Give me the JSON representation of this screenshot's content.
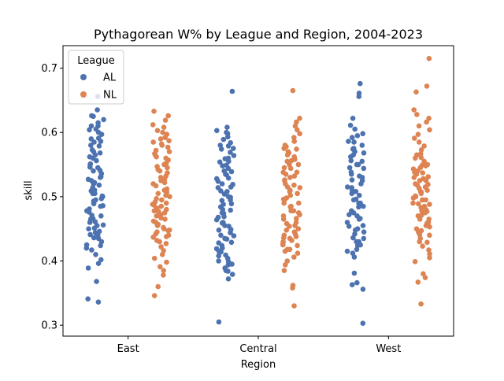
{
  "chart_data": {
    "type": "scatter",
    "subtype": "stripplot",
    "title": "Pythagorean W% by League and Region, 2004-2023",
    "xlabel": "Region",
    "ylabel": "skill",
    "categories": [
      "East",
      "Central",
      "West"
    ],
    "ylim": [
      0.283,
      0.735
    ],
    "yticks": [
      0.3,
      0.4,
      0.5,
      0.6,
      0.7
    ],
    "ytick_labels": [
      "0.3",
      "0.4",
      "0.5",
      "0.6",
      "0.7"
    ],
    "grid": false,
    "legend": {
      "title": "League",
      "position": "top-left"
    },
    "series": [
      {
        "name": "AL",
        "color": "#4c72b0",
        "values": [
          [
            0.656,
            0.626,
            0.635,
            0.62,
            0.615,
            0.61,
            0.604,
            0.597,
            0.591,
            0.586,
            0.579,
            0.573,
            0.568,
            0.562,
            0.556,
            0.551,
            0.546,
            0.541,
            0.536,
            0.531,
            0.527,
            0.522,
            0.518,
            0.514,
            0.509,
            0.505,
            0.501,
            0.497,
            0.493,
            0.489,
            0.485,
            0.481,
            0.476,
            0.471,
            0.466,
            0.461,
            0.456,
            0.451,
            0.446,
            0.441,
            0.436,
            0.43,
            0.424,
            0.417,
            0.41,
            0.402,
            0.396,
            0.389,
            0.368,
            0.341,
            0.336,
            0.625,
            0.6,
            0.58,
            0.56,
            0.54,
            0.52,
            0.5,
            0.49,
            0.478,
            0.465,
            0.45,
            0.44,
            0.42,
            0.61,
            0.59,
            0.57,
            0.55,
            0.53,
            0.51,
            0.495,
            0.47,
            0.455,
            0.435,
            0.425,
            0.605,
            0.585,
            0.565,
            0.545,
            0.525,
            0.505,
            0.486,
            0.46,
            0.444
          ],
          [
            0.664,
            0.608,
            0.603,
            0.598,
            0.593,
            0.589,
            0.584,
            0.579,
            0.574,
            0.569,
            0.564,
            0.559,
            0.554,
            0.549,
            0.544,
            0.539,
            0.534,
            0.529,
            0.524,
            0.519,
            0.514,
            0.509,
            0.504,
            0.499,
            0.494,
            0.489,
            0.484,
            0.479,
            0.474,
            0.469,
            0.464,
            0.459,
            0.454,
            0.449,
            0.444,
            0.439,
            0.434,
            0.429,
            0.424,
            0.419,
            0.414,
            0.409,
            0.404,
            0.399,
            0.394,
            0.389,
            0.384,
            0.379,
            0.372,
            0.305,
            0.6,
            0.58,
            0.56,
            0.54,
            0.52,
            0.5,
            0.48,
            0.46,
            0.44,
            0.42,
            0.4,
            0.385,
            0.575,
            0.555,
            0.535,
            0.515,
            0.495,
            0.475,
            0.455,
            0.435,
            0.415,
            0.395,
            0.548,
            0.528,
            0.508,
            0.488,
            0.468,
            0.448,
            0.428,
            0.408
          ],
          [
            0.676,
            0.661,
            0.656,
            0.622,
            0.611,
            0.605,
            0.598,
            0.592,
            0.586,
            0.58,
            0.574,
            0.568,
            0.562,
            0.556,
            0.55,
            0.544,
            0.538,
            0.532,
            0.526,
            0.52,
            0.514,
            0.508,
            0.502,
            0.496,
            0.49,
            0.484,
            0.478,
            0.472,
            0.466,
            0.46,
            0.454,
            0.448,
            0.442,
            0.436,
            0.43,
            0.424,
            0.418,
            0.412,
            0.406,
            0.381,
            0.366,
            0.363,
            0.356,
            0.303,
            0.595,
            0.575,
            0.555,
            0.535,
            0.515,
            0.495,
            0.475,
            0.455,
            0.435,
            0.415,
            0.585,
            0.565,
            0.545,
            0.525,
            0.505,
            0.485,
            0.465,
            0.445,
            0.425,
            0.57,
            0.55,
            0.53,
            0.51,
            0.49,
            0.47,
            0.45,
            0.43
          ]
        ]
      },
      {
        "name": "NL",
        "color": "#dd8452",
        "values": [
          [
            0.633,
            0.626,
            0.619,
            0.612,
            0.608,
            0.603,
            0.597,
            0.592,
            0.587,
            0.582,
            0.577,
            0.572,
            0.567,
            0.562,
            0.557,
            0.552,
            0.547,
            0.542,
            0.537,
            0.532,
            0.527,
            0.522,
            0.517,
            0.512,
            0.507,
            0.502,
            0.497,
            0.492,
            0.487,
            0.482,
            0.477,
            0.472,
            0.467,
            0.462,
            0.457,
            0.452,
            0.447,
            0.442,
            0.437,
            0.432,
            0.427,
            0.422,
            0.416,
            0.41,
            0.404,
            0.398,
            0.391,
            0.385,
            0.378,
            0.36,
            0.346,
            0.6,
            0.58,
            0.56,
            0.54,
            0.52,
            0.5,
            0.49,
            0.48,
            0.47,
            0.46,
            0.45,
            0.44,
            0.43,
            0.59,
            0.57,
            0.55,
            0.53,
            0.51,
            0.495,
            0.485,
            0.475,
            0.465,
            0.455,
            0.445,
            0.585,
            0.565,
            0.545,
            0.525,
            0.505,
            0.488,
            0.478,
            0.448,
            0.438
          ],
          [
            0.665,
            0.622,
            0.616,
            0.61,
            0.604,
            0.598,
            0.592,
            0.586,
            0.58,
            0.574,
            0.568,
            0.562,
            0.556,
            0.55,
            0.544,
            0.538,
            0.532,
            0.526,
            0.52,
            0.514,
            0.508,
            0.502,
            0.496,
            0.49,
            0.484,
            0.478,
            0.472,
            0.466,
            0.46,
            0.454,
            0.448,
            0.442,
            0.436,
            0.43,
            0.424,
            0.418,
            0.412,
            0.406,
            0.4,
            0.394,
            0.385,
            0.362,
            0.358,
            0.33,
            0.575,
            0.565,
            0.555,
            0.545,
            0.535,
            0.525,
            0.515,
            0.505,
            0.495,
            0.485,
            0.475,
            0.465,
            0.455,
            0.445,
            0.435,
            0.425,
            0.415,
            0.578,
            0.558,
            0.538,
            0.518,
            0.498,
            0.478,
            0.458,
            0.438,
            0.428,
            0.418,
            0.57,
            0.55,
            0.53,
            0.51,
            0.49,
            0.47,
            0.45,
            0.44,
            0.432
          ],
          [
            0.715,
            0.672,
            0.663,
            0.635,
            0.628,
            0.622,
            0.616,
            0.61,
            0.604,
            0.597,
            0.591,
            0.585,
            0.579,
            0.573,
            0.567,
            0.561,
            0.555,
            0.549,
            0.543,
            0.537,
            0.531,
            0.525,
            0.519,
            0.513,
            0.507,
            0.501,
            0.495,
            0.489,
            0.483,
            0.477,
            0.471,
            0.465,
            0.459,
            0.453,
            0.447,
            0.441,
            0.435,
            0.429,
            0.423,
            0.417,
            0.411,
            0.405,
            0.399,
            0.38,
            0.374,
            0.367,
            0.333,
            0.56,
            0.55,
            0.54,
            0.53,
            0.52,
            0.51,
            0.5,
            0.49,
            0.48,
            0.47,
            0.46,
            0.45,
            0.44,
            0.43,
            0.565,
            0.545,
            0.535,
            0.525,
            0.515,
            0.505,
            0.495,
            0.485,
            0.475,
            0.465,
            0.455,
            0.445,
            0.548,
            0.538,
            0.528,
            0.518,
            0.508,
            0.498,
            0.488,
            0.478
          ]
        ]
      }
    ]
  }
}
